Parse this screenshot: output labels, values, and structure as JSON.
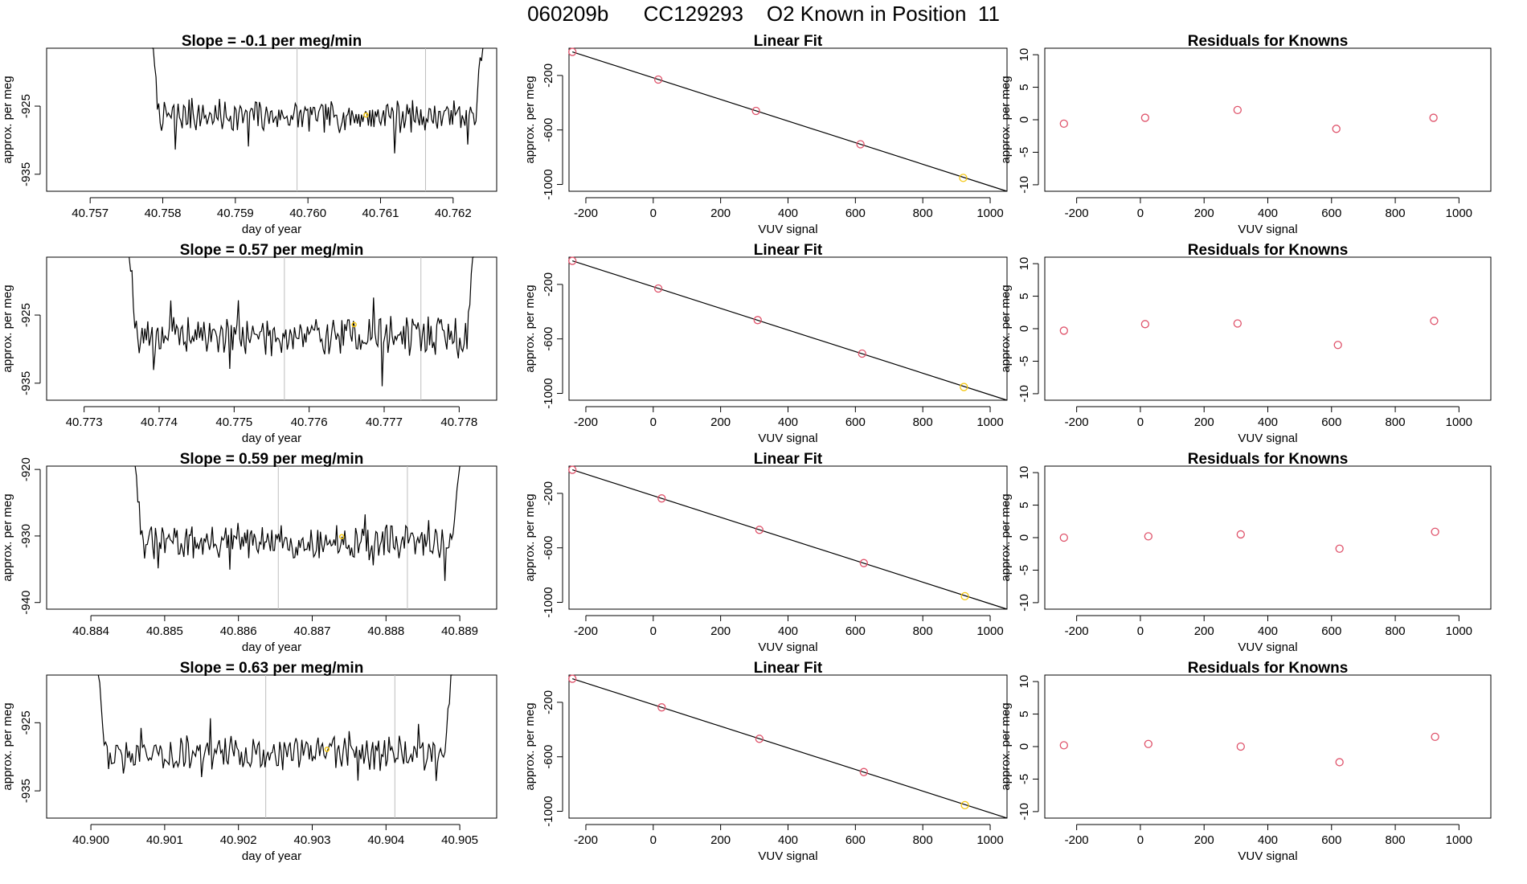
{
  "page": {
    "title_parts": [
      "060209b",
      "CC129293",
      "O2 Known in Position  11"
    ]
  },
  "colors": {
    "line": "#000000",
    "frame": "#000000",
    "marker": "#DF536B",
    "highlight": "#F5C710",
    "divider": "#BEBEBE"
  },
  "chart_data": [
    {
      "type": "line",
      "title": "Slope =  -0.1  per meg/min",
      "xlabel": "day of year",
      "ylabel": "approx. per meg",
      "xlim": [
        40.7564,
        40.7626
      ],
      "ylim": [
        -937.5,
        -916.5
      ],
      "xticks": [
        40.757,
        40.758,
        40.759,
        40.76,
        40.761,
        40.762
      ],
      "xtick_decimals": 3,
      "yticks": [
        -925,
        -935
      ],
      "vlines": [
        40.75985,
        40.76162
      ],
      "highlight_point": [
        40.7608,
        -926.3
      ],
      "series": [
        {
          "x": [
            40.75785,
            40.76241
          ],
          "values": [
            -926.5,
            -926.5
          ],
          "noise_seed": 7,
          "noise_amp": 1.9
        }
      ]
    },
    {
      "type": "scatter",
      "title": "Linear Fit",
      "xlabel": "VUV signal",
      "ylabel": "approx. per meg",
      "xlim": [
        -250,
        1050
      ],
      "ylim": [
        -1050,
        0
      ],
      "xticks": [
        -200,
        0,
        200,
        400,
        600,
        800,
        1000
      ],
      "yticks": [
        -200,
        -600,
        -1000
      ],
      "fit_line": {
        "x": [
          -240,
          1050
        ],
        "values": [
          -27,
          -1053
        ]
      },
      "points": {
        "x": [
          -240,
          15,
          305,
          615,
          920
        ],
        "values": [
          -27,
          -230,
          -460,
          -705,
          -952
        ]
      },
      "highlight_index": 4
    },
    {
      "type": "scatter",
      "title": "Residuals for Knowns",
      "xlabel": "VUV signal",
      "ylabel": "approx. per meg",
      "xlim": [
        -300,
        1100
      ],
      "ylim": [
        -11,
        11
      ],
      "xticks": [
        -200,
        0,
        200,
        400,
        600,
        800,
        1000
      ],
      "yticks": [
        10,
        5,
        0,
        -5,
        -10
      ],
      "points": {
        "x": [
          -240,
          15,
          305,
          615,
          920
        ],
        "values": [
          -0.6,
          0.3,
          1.5,
          -1.4,
          0.3
        ]
      }
    },
    {
      "type": "line",
      "title": "Slope =  0.57  per meg/min",
      "xlabel": "day of year",
      "ylabel": "approx. per meg",
      "xlim": [
        40.7725,
        40.7785
      ],
      "ylim": [
        -937.5,
        -916.5
      ],
      "xticks": [
        40.773,
        40.774,
        40.775,
        40.776,
        40.777,
        40.778
      ],
      "xtick_decimals": 3,
      "yticks": [
        -925,
        -935
      ],
      "vlines": [
        40.77567,
        40.77749
      ],
      "highlight_point": [
        40.7766,
        -926.4
      ],
      "series": [
        {
          "x": [
            40.7736,
            40.7782
          ],
          "values": [
            -928,
            -928
          ],
          "noise_seed": 19,
          "noise_amp": 2.3
        }
      ]
    },
    {
      "type": "scatter",
      "title": "Linear Fit",
      "xlabel": "VUV signal",
      "ylabel": "approx. per meg",
      "xlim": [
        -250,
        1050
      ],
      "ylim": [
        -1050,
        0
      ],
      "xticks": [
        -200,
        0,
        200,
        400,
        600,
        800,
        1000
      ],
      "yticks": [
        -200,
        -600,
        -1000
      ],
      "fit_line": {
        "x": [
          -240,
          1050
        ],
        "values": [
          -27,
          -1053
        ]
      },
      "points": {
        "x": [
          -240,
          15,
          310,
          620,
          922
        ],
        "values": [
          -27,
          -230,
          -462,
          -708,
          -953
        ]
      },
      "highlight_index": 4
    },
    {
      "type": "scatter",
      "title": "Residuals for Knowns",
      "xlabel": "VUV signal",
      "ylabel": "approx. per meg",
      "xlim": [
        -300,
        1100
      ],
      "ylim": [
        -11,
        11
      ],
      "xticks": [
        -200,
        0,
        200,
        400,
        600,
        800,
        1000
      ],
      "yticks": [
        10,
        5,
        0,
        -5,
        -10
      ],
      "points": {
        "x": [
          -240,
          15,
          305,
          620,
          922
        ],
        "values": [
          -0.3,
          0.7,
          0.8,
          -2.5,
          1.2
        ]
      }
    },
    {
      "type": "line",
      "title": "Slope =  0.59  per meg/min",
      "xlabel": "day of year",
      "ylabel": "approx. per meg",
      "xlim": [
        40.8834,
        40.8895
      ],
      "ylim": [
        -941,
        -919.5
      ],
      "xticks": [
        40.884,
        40.885,
        40.886,
        40.887,
        40.888,
        40.889
      ],
      "xtick_decimals": 3,
      "yticks": [
        -920,
        -930,
        -940
      ],
      "vlines": [
        40.88654,
        40.88829
      ],
      "highlight_point": [
        40.8874,
        -930.1
      ],
      "series": [
        {
          "x": [
            40.8846,
            40.889
          ],
          "values": [
            -931,
            -931
          ],
          "noise_seed": 31,
          "noise_amp": 2.1
        }
      ]
    },
    {
      "type": "scatter",
      "title": "Linear Fit",
      "xlabel": "VUV signal",
      "ylabel": "approx. per meg",
      "xlim": [
        -250,
        1050
      ],
      "ylim": [
        -1050,
        0
      ],
      "xticks": [
        -200,
        0,
        200,
        400,
        600,
        800,
        1000
      ],
      "yticks": [
        -200,
        -600,
        -1000
      ],
      "fit_line": {
        "x": [
          -240,
          1050
        ],
        "values": [
          -27,
          -1053
        ]
      },
      "points": {
        "x": [
          -240,
          25,
          315,
          625,
          925
        ],
        "values": [
          -27,
          -237,
          -468,
          -712,
          -955
        ]
      },
      "highlight_index": 4
    },
    {
      "type": "scatter",
      "title": "Residuals for Knowns",
      "xlabel": "VUV signal",
      "ylabel": "approx. per meg",
      "xlim": [
        -300,
        1100
      ],
      "ylim": [
        -11,
        11
      ],
      "xticks": [
        -200,
        0,
        200,
        400,
        600,
        800,
        1000
      ],
      "yticks": [
        10,
        5,
        0,
        -5,
        -10
      ],
      "points": {
        "x": [
          -240,
          25,
          315,
          625,
          925
        ],
        "values": [
          0.0,
          0.2,
          0.5,
          -1.7,
          0.9
        ]
      }
    },
    {
      "type": "line",
      "title": "Slope =  0.63  per meg/min",
      "xlabel": "day of year",
      "ylabel": "approx. per meg",
      "xlim": [
        40.8994,
        40.9055
      ],
      "ylim": [
        -939,
        -918
      ],
      "xticks": [
        40.9,
        40.901,
        40.902,
        40.903,
        40.904,
        40.905
      ],
      "xtick_decimals": 3,
      "yticks": [
        -925,
        -935
      ],
      "vlines": [
        40.90237,
        40.90412
      ],
      "highlight_point": [
        40.9032,
        -928.9
      ],
      "series": [
        {
          "x": [
            40.9001,
            40.9049
          ],
          "values": [
            -929.5,
            -929.5
          ],
          "noise_seed": 43,
          "noise_amp": 2.0
        }
      ]
    },
    {
      "type": "scatter",
      "title": "Linear Fit",
      "xlabel": "VUV signal",
      "ylabel": "approx. per meg",
      "xlim": [
        -250,
        1050
      ],
      "ylim": [
        -1050,
        0
      ],
      "xticks": [
        -200,
        0,
        200,
        400,
        600,
        800,
        1000
      ],
      "yticks": [
        -200,
        -600,
        -1000
      ],
      "fit_line": {
        "x": [
          -240,
          1050
        ],
        "values": [
          -27,
          -1053
        ]
      },
      "points": {
        "x": [
          -240,
          25,
          315,
          625,
          925
        ],
        "values": [
          -27,
          -237,
          -468,
          -712,
          -955
        ]
      },
      "highlight_index": 4
    },
    {
      "type": "scatter",
      "title": "Residuals for Knowns",
      "xlabel": "VUV signal",
      "ylabel": "approx. per meg",
      "xlim": [
        -300,
        1100
      ],
      "ylim": [
        -11,
        11
      ],
      "xticks": [
        -200,
        0,
        200,
        400,
        600,
        800,
        1000
      ],
      "yticks": [
        10,
        5,
        0,
        -5,
        -10
      ],
      "points": {
        "x": [
          -240,
          25,
          315,
          625,
          925
        ],
        "values": [
          0.2,
          0.4,
          0.0,
          -2.4,
          1.5
        ]
      }
    }
  ]
}
